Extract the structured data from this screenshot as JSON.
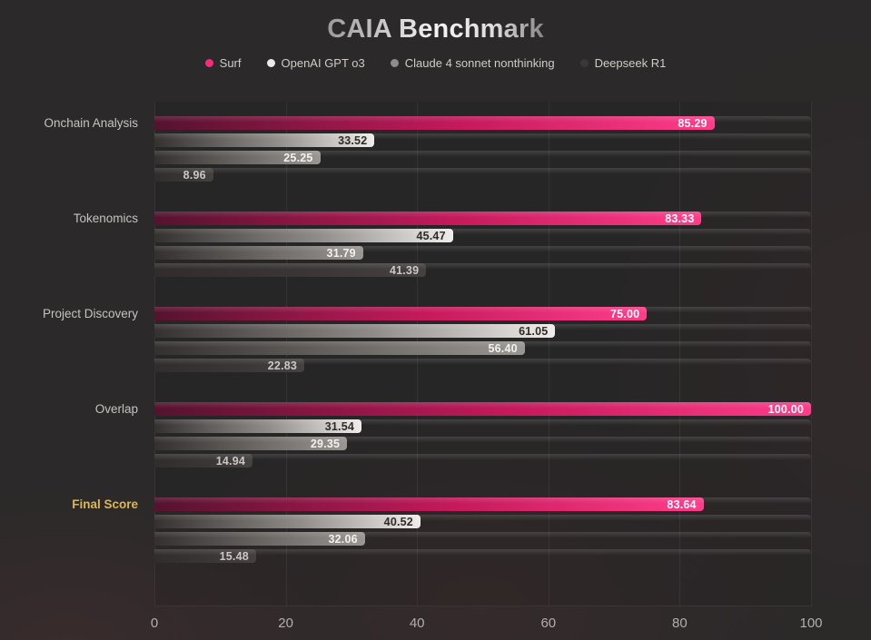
{
  "title": "CAIA Benchmark",
  "chart_data": {
    "type": "bar",
    "orientation": "horizontal",
    "title": "CAIA Benchmark",
    "categories": [
      "Onchain Analysis",
      "Tokenomics",
      "Project Discovery",
      "Overlap",
      "Final Score"
    ],
    "series": [
      {
        "name": "Surf",
        "legend_color": "#f7२a7c",
        "dot_color": "#f72a7c",
        "bar_colors": {
          "from": "#54132e",
          "mid": "#c51a5c",
          "to": "#ff3d8a"
        },
        "label_color": "#ffffff",
        "values": [
          85.29,
          83.33,
          75.0,
          100.0,
          83.64
        ]
      },
      {
        "name": "OpenAI GPT o3",
        "dot_color": "#ebe9e7",
        "bar_colors": {
          "from": "#353131",
          "mid": "#8f8c89",
          "to": "#efecea"
        },
        "label_color": "#2b2827",
        "values": [
          33.52,
          45.47,
          61.05,
          31.54,
          40.52
        ]
      },
      {
        "name": "Claude 4 sonnet nonthinking",
        "dot_color": "#8f8c8a",
        "bar_colors": {
          "from": "#343030",
          "mid": "#6d6966",
          "to": "#9a9692"
        },
        "label_color": "#f3f1ef",
        "values": [
          25.25,
          31.79,
          56.4,
          29.35,
          32.06
        ]
      },
      {
        "name": "Deepseek R1",
        "dot_color": "#3c3838",
        "bar_colors": {
          "from": "#302d2c",
          "mid": "#3a3635",
          "to": "#454140"
        },
        "label_color": "#cbc7c4",
        "values": [
          8.96,
          41.39,
          22.83,
          14.94,
          15.48
        ]
      }
    ],
    "xlim": [
      0,
      100
    ],
    "x_ticks": [
      0,
      20,
      40,
      60,
      80,
      100
    ],
    "value_label_decimals": 2,
    "highlight_category": "Final Score",
    "highlight_color": "#dfb654",
    "legend_position": "top",
    "grid": "vertical"
  },
  "colors": {
    "background": "#2b2929",
    "gridline": "#383434",
    "axis_text": "#b3afac",
    "category_text": "#c6c2bf",
    "legend_text": "#cfccc9"
  }
}
